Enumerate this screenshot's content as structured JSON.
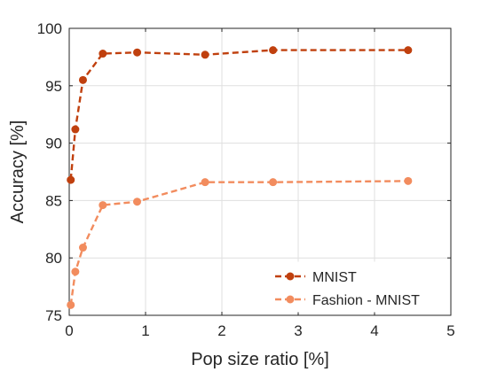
{
  "chart_data": {
    "type": "line",
    "xlabel": "Pop size ratio [%]",
    "ylabel": "Accuracy [%]",
    "xlim": [
      0,
      5
    ],
    "ylim": [
      75,
      100
    ],
    "xticks": [
      0,
      1,
      2,
      3,
      4,
      5
    ],
    "yticks": [
      75,
      80,
      85,
      90,
      95,
      100
    ],
    "grid": true,
    "legend_position": "bottom-right",
    "series": [
      {
        "name": "MNIST",
        "color": "#c0400e",
        "x": [
          0.02,
          0.08,
          0.18,
          0.44,
          0.89,
          1.78,
          2.67,
          4.44
        ],
        "y": [
          86.8,
          91.2,
          95.5,
          97.8,
          97.9,
          97.7,
          98.1,
          98.1
        ]
      },
      {
        "name": "Fashion - MNIST",
        "color": "#f28c5e",
        "x": [
          0.02,
          0.08,
          0.18,
          0.44,
          0.89,
          1.78,
          2.67,
          4.44
        ],
        "y": [
          75.9,
          78.8,
          80.9,
          84.6,
          84.9,
          86.6,
          86.6,
          86.7
        ]
      }
    ]
  }
}
